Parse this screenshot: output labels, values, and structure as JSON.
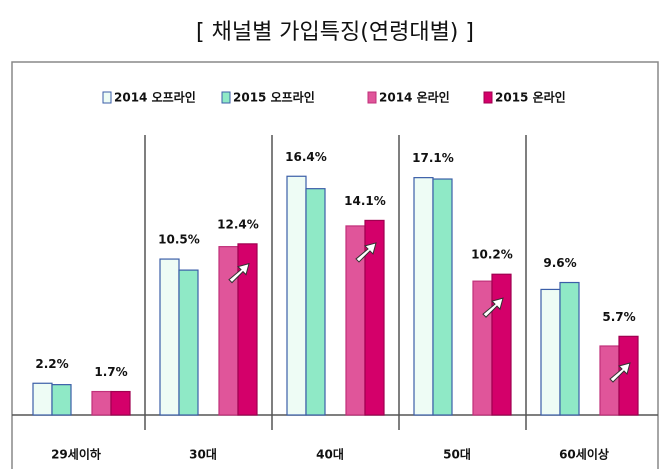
{
  "chart_data": {
    "type": "bar",
    "title": "[ 채널별 가입특징(연령대별) ]",
    "categories": [
      "29세이하",
      "30대",
      "40대",
      "50대",
      "60세이상"
    ],
    "series": [
      {
        "name": "2014 오프라인",
        "color": "#eefcf5",
        "values": [
          2.3,
          11.3,
          17.3,
          17.2,
          9.1
        ]
      },
      {
        "name": "2015 오프라인",
        "color": "#8fe9c6",
        "values": [
          2.2,
          10.5,
          16.4,
          17.1,
          9.6
        ],
        "value_labels": [
          "2.2%",
          "10.5%",
          "16.4%",
          "17.1%",
          "9.6%"
        ]
      },
      {
        "name": "2014 온라인",
        "color": "#e0559a",
        "values": [
          1.7,
          12.2,
          13.7,
          9.7,
          5.0
        ]
      },
      {
        "name": "2015 온라인",
        "color": "#d4006a",
        "values": [
          1.7,
          12.4,
          14.1,
          10.2,
          5.7
        ],
        "value_labels": [
          "1.7%",
          "12.4%",
          "14.1%",
          "10.2%",
          "5.7%"
        ]
      }
    ]
  }
}
